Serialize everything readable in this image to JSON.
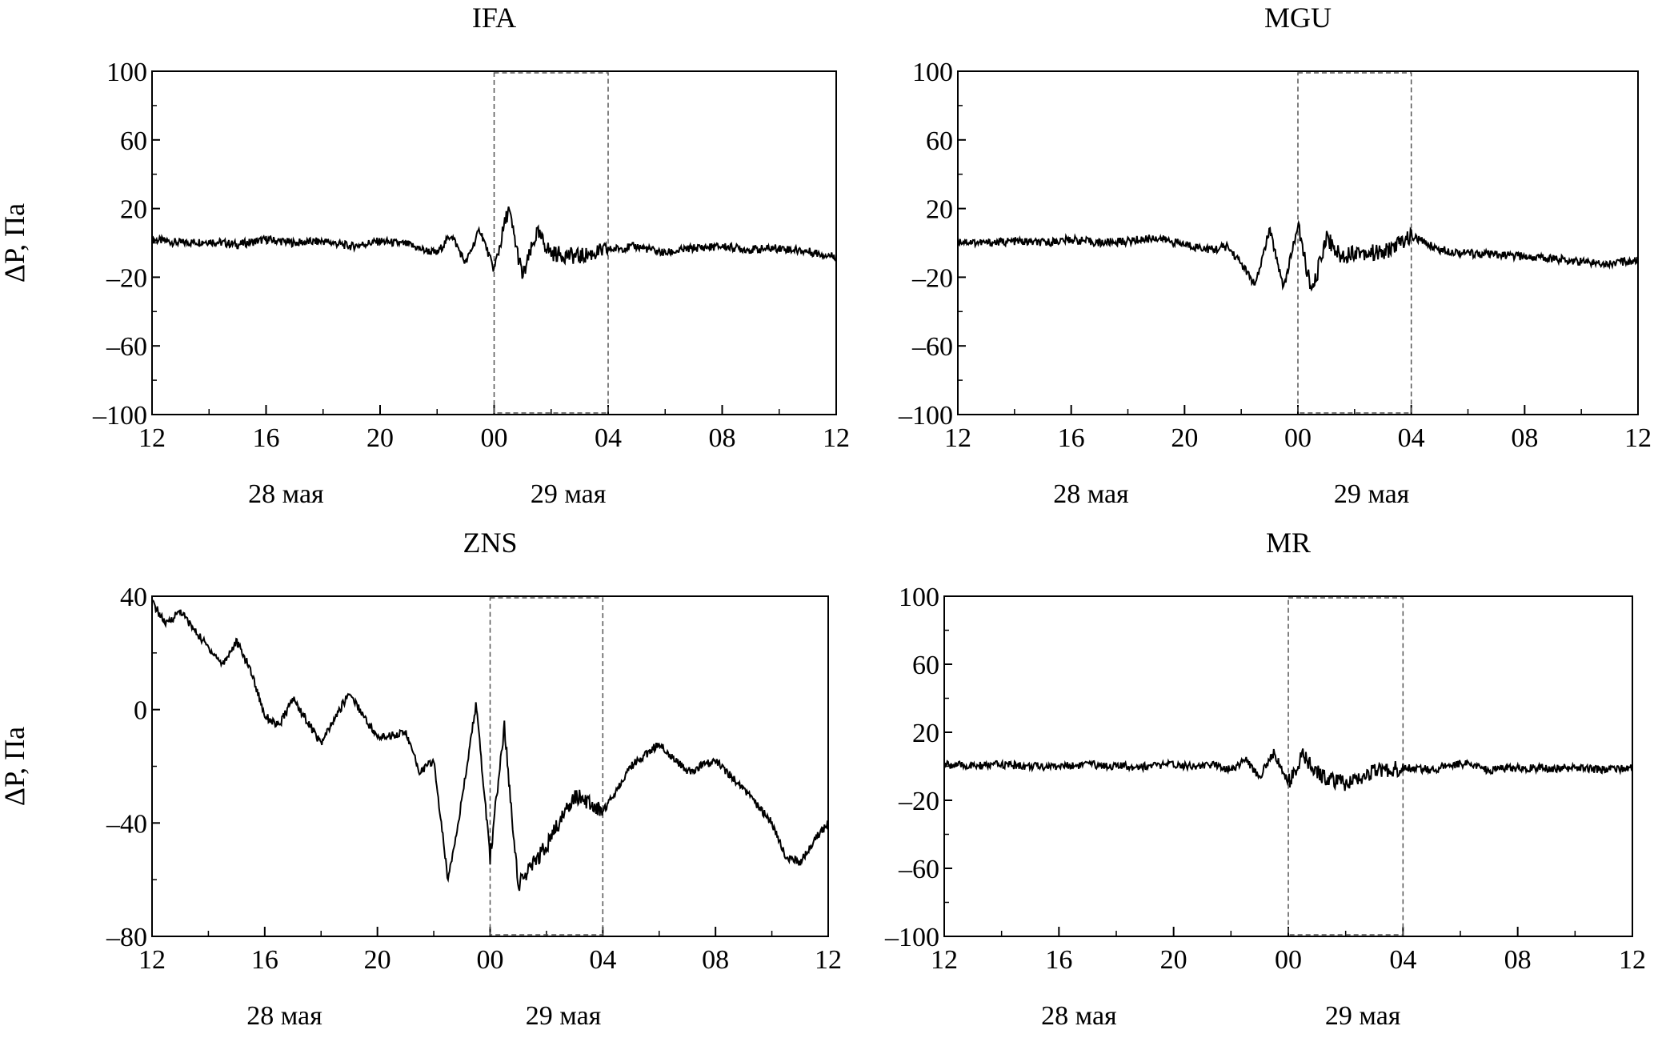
{
  "chart_data": [
    {
      "type": "line",
      "title": "IFA",
      "ylabel": "ΔP, Па",
      "ylim": [
        -100,
        100
      ],
      "yticks": [
        100,
        60,
        20,
        -20,
        -60,
        -100
      ],
      "yticks_display": [
        "100",
        "60",
        "20",
        "–20",
        "–60",
        "–100"
      ],
      "xlim": [
        0,
        24
      ],
      "xticks_labels": [
        "12",
        "16",
        "20",
        "00",
        "04",
        "08",
        "12"
      ],
      "date_labels": [
        "28 мая",
        "29 мая"
      ],
      "highlight_window": [
        "00",
        "04"
      ],
      "grid": false,
      "series": [
        {
          "x": [
            0,
            1,
            2,
            3,
            4,
            5,
            6,
            7,
            8,
            9,
            9.5,
            10,
            10.5,
            11,
            11.5,
            12,
            12.5,
            13,
            13.5,
            14,
            15,
            16,
            17,
            18,
            19,
            20,
            21,
            22,
            23,
            24
          ],
          "values": [
            2,
            0,
            1,
            -1,
            2,
            0,
            1,
            -2,
            1,
            -1,
            -4,
            -6,
            5,
            -12,
            8,
            -16,
            20,
            -20,
            6,
            -6,
            -8,
            -4,
            -2,
            -6,
            -3,
            -2,
            -4,
            -3,
            -5,
            -8
          ]
        }
      ]
    },
    {
      "type": "line",
      "title": "MGU",
      "ylabel": "",
      "ylim": [
        -100,
        100
      ],
      "yticks": [
        100,
        60,
        20,
        -20,
        -60,
        -100
      ],
      "yticks_display": [
        "100",
        "60",
        "20",
        "–20",
        "–60",
        "–100"
      ],
      "xlim": [
        0,
        24
      ],
      "xticks_labels": [
        "12",
        "16",
        "20",
        "00",
        "04",
        "08",
        "12"
      ],
      "date_labels": [
        "28 мая",
        "29 мая"
      ],
      "highlight_window": [
        "00",
        "04"
      ],
      "grid": false,
      "series": [
        {
          "x": [
            0,
            1,
            2,
            3,
            4,
            5,
            6,
            7,
            8,
            9,
            9.5,
            10,
            10.5,
            11,
            11.5,
            12,
            12.5,
            13,
            13.5,
            14,
            15,
            16,
            17,
            18,
            19,
            20,
            21,
            22,
            23,
            24
          ],
          "values": [
            1,
            0,
            1,
            0,
            2,
            0,
            1,
            3,
            -1,
            -4,
            -2,
            -12,
            -25,
            8,
            -26,
            10,
            -30,
            4,
            -8,
            -5,
            -6,
            4,
            -4,
            -6,
            -7,
            -8,
            -9,
            -11,
            -12,
            -10
          ]
        }
      ]
    },
    {
      "type": "line",
      "title": "ZNS",
      "ylabel": "ΔP, Па",
      "ylim": [
        -80,
        40
      ],
      "yticks": [
        40,
        0,
        -40,
        -80
      ],
      "yticks_display": [
        "40",
        "0",
        "–40",
        "–80"
      ],
      "xlim": [
        0,
        24
      ],
      "xticks_labels": [
        "12",
        "16",
        "20",
        "00",
        "04",
        "08",
        "12"
      ],
      "date_labels": [
        "28 мая",
        "29 мая"
      ],
      "highlight_window": [
        "00",
        "04"
      ],
      "grid": false,
      "series": [
        {
          "x": [
            0,
            0.5,
            1,
            1.5,
            2,
            2.5,
            3,
            3.5,
            4,
            4.5,
            5,
            6,
            7,
            8,
            9,
            9.5,
            10,
            10.5,
            11,
            11.5,
            12,
            12.5,
            13,
            14,
            15,
            16,
            17,
            18,
            19,
            20,
            21,
            22,
            22.5,
            23,
            23.5,
            24
          ],
          "values": [
            38,
            30,
            35,
            28,
            22,
            16,
            24,
            14,
            -2,
            -6,
            4,
            -12,
            6,
            -10,
            -8,
            -22,
            -18,
            -60,
            -32,
            2,
            -52,
            -6,
            -62,
            -48,
            -30,
            -36,
            -20,
            -12,
            -22,
            -18,
            -28,
            -40,
            -52,
            -54,
            -46,
            -40
          ]
        }
      ]
    },
    {
      "type": "line",
      "title": "MR",
      "ylabel": "",
      "ylim": [
        -100,
        100
      ],
      "yticks": [
        100,
        60,
        20,
        -20,
        -60,
        -100
      ],
      "yticks_display": [
        "100",
        "60",
        "20",
        "–20",
        "–60",
        "–100"
      ],
      "xlim": [
        0,
        24
      ],
      "xticks_labels": [
        "12",
        "16",
        "20",
        "00",
        "04",
        "08",
        "12"
      ],
      "date_labels": [
        "28 мая",
        "29 мая"
      ],
      "highlight_window": [
        "00",
        "04"
      ],
      "grid": false,
      "series": [
        {
          "x": [
            0,
            1,
            2,
            3,
            4,
            5,
            6,
            7,
            8,
            9,
            9.5,
            10,
            10.5,
            11,
            11.5,
            12,
            12.5,
            13,
            13.5,
            14,
            15,
            16,
            17,
            18,
            19,
            20,
            21,
            22,
            23,
            24
          ],
          "values": [
            1,
            0,
            1,
            0,
            0,
            1,
            0,
            0,
            1,
            0,
            1,
            -2,
            4,
            -6,
            8,
            -10,
            6,
            -4,
            -8,
            -10,
            -3,
            -1,
            -2,
            2,
            -2,
            -1,
            -1,
            -1,
            -2,
            -1
          ]
        }
      ]
    }
  ]
}
